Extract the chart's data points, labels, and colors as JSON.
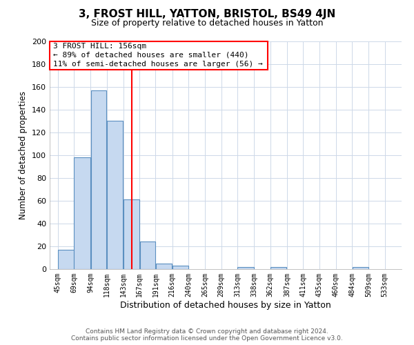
{
  "title": "3, FROST HILL, YATTON, BRISTOL, BS49 4JN",
  "subtitle": "Size of property relative to detached houses in Yatton",
  "xlabel": "Distribution of detached houses by size in Yatton",
  "ylabel": "Number of detached properties",
  "bar_left_edges": [
    45,
    69,
    94,
    118,
    143,
    167,
    191,
    216,
    240,
    265,
    289,
    313,
    338,
    362,
    387,
    411,
    435,
    460,
    484,
    509
  ],
  "bar_widths": [
    24,
    25,
    24,
    25,
    24,
    24,
    25,
    24,
    25,
    24,
    24,
    25,
    24,
    25,
    24,
    24,
    25,
    24,
    25,
    24
  ],
  "bar_heights": [
    17,
    98,
    157,
    130,
    61,
    24,
    5,
    3,
    0,
    0,
    0,
    2,
    0,
    2,
    0,
    0,
    0,
    0,
    2,
    0
  ],
  "bar_color": "#c6d9f0",
  "bar_edgecolor": "#5a8fc0",
  "tick_labels": [
    "45sqm",
    "69sqm",
    "94sqm",
    "118sqm",
    "143sqm",
    "167sqm",
    "191sqm",
    "216sqm",
    "240sqm",
    "265sqm",
    "289sqm",
    "313sqm",
    "338sqm",
    "362sqm",
    "387sqm",
    "411sqm",
    "435sqm",
    "460sqm",
    "484sqm",
    "509sqm",
    "533sqm"
  ],
  "tick_positions": [
    45,
    69,
    94,
    118,
    143,
    167,
    191,
    216,
    240,
    265,
    289,
    313,
    338,
    362,
    387,
    411,
    435,
    460,
    484,
    509,
    533
  ],
  "red_line_x": 156,
  "ylim": [
    0,
    200
  ],
  "xlim": [
    33,
    558
  ],
  "annotation_title": "3 FROST HILL: 156sqm",
  "annotation_line1": "← 89% of detached houses are smaller (440)",
  "annotation_line2": "11% of semi-detached houses are larger (56) →",
  "footer_line1": "Contains HM Land Registry data © Crown copyright and database right 2024.",
  "footer_line2": "Contains public sector information licensed under the Open Government Licence v3.0.",
  "background_color": "#ffffff",
  "grid_color": "#cdd8e8"
}
